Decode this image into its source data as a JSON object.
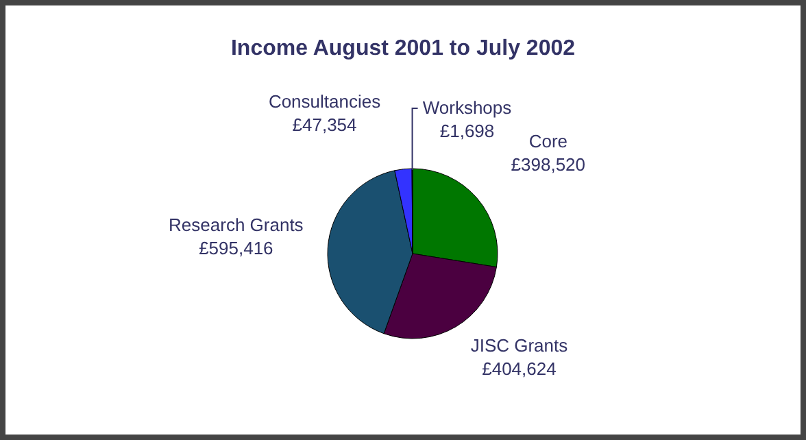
{
  "chart_data": {
    "type": "pie",
    "title": "Income August 2001 to July 2002",
    "categories": [
      "Core",
      "JISC Grants",
      "Research Grants",
      "Consultancies",
      "Workshops"
    ],
    "values": [
      398520,
      404624,
      595416,
      47354,
      1698
    ],
    "value_labels": [
      "£398,520",
      "£404,624",
      "£595,416",
      "£47,354",
      "£1,698"
    ],
    "colors": [
      "#007700",
      "#4b0040",
      "#1a5070",
      "#3333ff",
      "#333366"
    ],
    "legend": false
  }
}
